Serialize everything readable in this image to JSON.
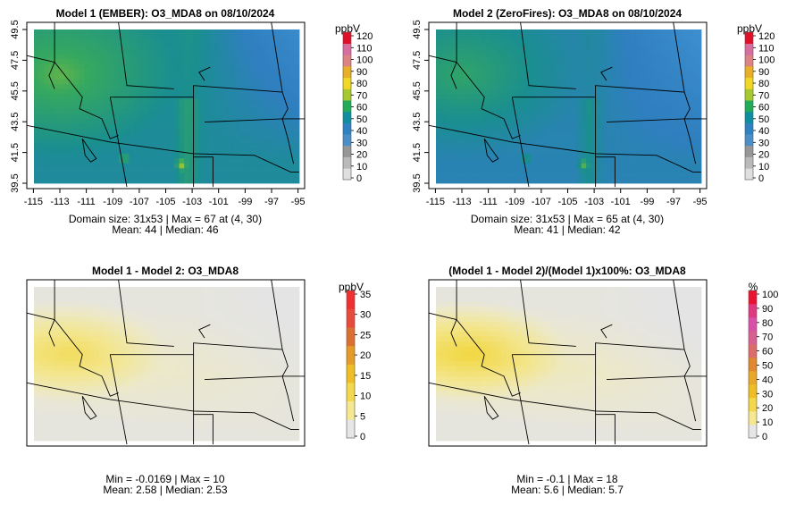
{
  "chart_data": [
    {
      "type": "heatmap",
      "id": "p1",
      "title": "Model 1 (EMBER): O3_MDA8 on 08/10/2024",
      "field": "model1",
      "xlim": [
        -115.5,
        -94.5
      ],
      "ylim": [
        39.5,
        49.5
      ],
      "x_ticks": [
        "-115",
        "-113",
        "-111",
        "-109",
        "-107",
        "-105",
        "-103",
        "-101",
        "-99",
        "-97",
        "-95"
      ],
      "y_ticks": [
        "39.5",
        "41.5",
        "43.5",
        "45.5",
        "47.5",
        "49.5"
      ],
      "legend_unit": "ppbV",
      "legend_labels": [
        "0",
        "10",
        "20",
        "30",
        "40",
        "50",
        "60",
        "70",
        "80",
        "90",
        "100",
        "110",
        "120"
      ],
      "legend_colors": [
        "#dfdfdf",
        "#bababa",
        "#979797",
        "#4c8fc8",
        "#2e82c2",
        "#0e8fa0",
        "#22ac5a",
        "#a8c830",
        "#f0d825",
        "#e8b028",
        "#dc8484",
        "#d66fa0",
        "#e01028"
      ],
      "stats_line1": "Domain size: 31x53 | Max = 67 at (4, 30)",
      "stats_line2": "Mean: 44 |  Median: 46"
    },
    {
      "type": "heatmap",
      "id": "p2",
      "title": "Model 2 (ZeroFires): O3_MDA8 on 08/10/2024",
      "field": "model2",
      "xlim": [
        -115.5,
        -94.5
      ],
      "ylim": [
        39.5,
        49.5
      ],
      "x_ticks": [
        "-115",
        "-113",
        "-111",
        "-109",
        "-107",
        "-105",
        "-103",
        "-101",
        "-99",
        "-97",
        "-95"
      ],
      "y_ticks": [
        "39.5",
        "41.5",
        "43.5",
        "45.5",
        "47.5",
        "49.5"
      ],
      "legend_unit": "ppbV",
      "legend_labels": [
        "0",
        "10",
        "20",
        "30",
        "40",
        "50",
        "60",
        "70",
        "80",
        "90",
        "100",
        "110",
        "120"
      ],
      "legend_colors": [
        "#dfdfdf",
        "#bababa",
        "#979797",
        "#4c8fc8",
        "#2e82c2",
        "#0e8fa0",
        "#22ac5a",
        "#a8c830",
        "#f0d825",
        "#e8b028",
        "#dc8484",
        "#d66fa0",
        "#e01028"
      ],
      "stats_line1": "Domain size: 31x53 | Max = 65 at (4, 30)",
      "stats_line2": "Mean: 41 |  Median: 42"
    },
    {
      "type": "heatmap",
      "id": "p3",
      "title": "Model 1 - Model 2: O3_MDA8",
      "field": "diff",
      "legend_unit": "ppbV",
      "legend_labels": [
        "0",
        "5",
        "10",
        "15",
        "20",
        "25",
        "30",
        "35"
      ],
      "legend_colors": [
        "#e6e6e6",
        "#f5e890",
        "#f2d84a",
        "#eebe24",
        "#e69a28",
        "#dc7030",
        "#e84a3c",
        "#f03030"
      ],
      "stats_line1": "Min = -0.0169 | Max = 10",
      "stats_line2": "Mean: 2.58 |  Median: 2.53"
    },
    {
      "type": "heatmap",
      "id": "p4",
      "title": "(Model 1 - Model 2)/(Model 1)x100%: O3_MDA8",
      "field": "pct",
      "legend_unit": "%",
      "legend_labels": [
        "0",
        "10",
        "20",
        "30",
        "40",
        "50",
        "60",
        "70",
        "80",
        "90",
        "100"
      ],
      "legend_colors": [
        "#e6e6e6",
        "#f5e890",
        "#f2d84a",
        "#eebe24",
        "#e8a828",
        "#e08830",
        "#dc6c6c",
        "#d86090",
        "#da50a8",
        "#e03880",
        "#ea1230"
      ],
      "stats_line1": "Min = -0.1 | Max = 18",
      "stats_line2": "Mean: 5.6 |  Median: 5.7"
    }
  ]
}
